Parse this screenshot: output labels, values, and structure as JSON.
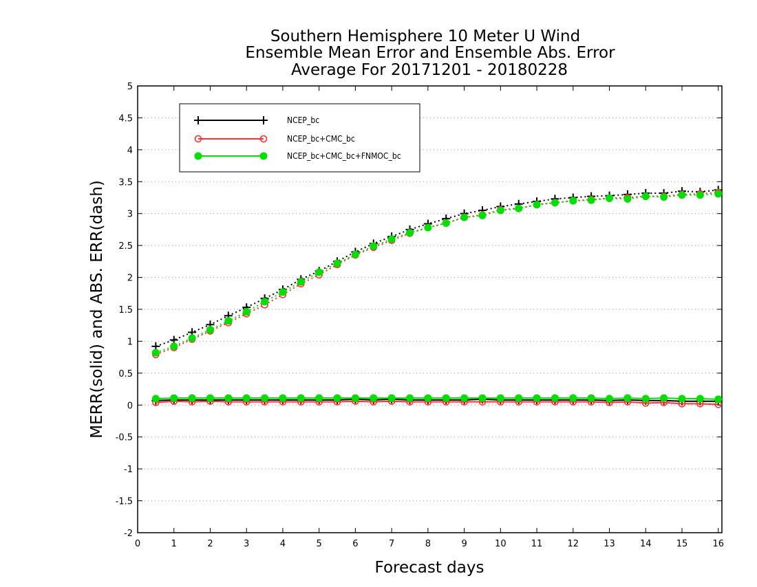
{
  "chart_data": {
    "type": "line",
    "title": [
      "Southern Hemisphere 10 Meter U Wind",
      "Ensemble Mean Error and Ensemble Abs. Error",
      "Average For 20171201 - 20180228"
    ],
    "xlabel": "Forecast days",
    "ylabel": "MERR(solid) and ABS. ERR(dash)",
    "xlim": [
      0,
      16.1
    ],
    "ylim": [
      -2,
      5
    ],
    "xticks": [
      "0",
      "1",
      "2",
      "3",
      "4",
      "5",
      "6",
      "7",
      "8",
      "9",
      "10",
      "11",
      "12",
      "13",
      "14",
      "15",
      "16"
    ],
    "yticks": [
      "-2",
      "-1.5",
      "-1",
      "-0.5",
      "0",
      "0.5",
      "1",
      "1.5",
      "2",
      "2.5",
      "3",
      "3.5",
      "4",
      "4.5",
      "5"
    ],
    "grid": "horizontal-dotted",
    "legend_position": "top-left",
    "x": [
      0.5,
      1,
      1.5,
      2,
      2.5,
      3,
      3.5,
      4,
      4.5,
      5,
      5.5,
      6,
      6.5,
      7,
      7.5,
      8,
      8.5,
      9,
      9.5,
      10,
      10.5,
      11,
      11.5,
      12,
      12.5,
      13,
      13.5,
      14,
      14.5,
      15,
      15.5,
      16
    ],
    "series": [
      {
        "name": "NCEP_bc",
        "color": "#000000",
        "marker": "plus",
        "merr": [
          0.07,
          0.08,
          0.08,
          0.08,
          0.08,
          0.08,
          0.08,
          0.08,
          0.08,
          0.08,
          0.08,
          0.09,
          0.08,
          0.09,
          0.08,
          0.08,
          0.08,
          0.08,
          0.09,
          0.08,
          0.08,
          0.08,
          0.08,
          0.08,
          0.08,
          0.07,
          0.08,
          0.07,
          0.07,
          0.06,
          0.06,
          0.06
        ],
        "abs_err": [
          0.92,
          1.02,
          1.14,
          1.26,
          1.4,
          1.53,
          1.67,
          1.81,
          1.97,
          2.1,
          2.25,
          2.4,
          2.53,
          2.64,
          2.75,
          2.84,
          2.92,
          3.0,
          3.05,
          3.11,
          3.15,
          3.19,
          3.23,
          3.25,
          3.27,
          3.28,
          3.3,
          3.32,
          3.32,
          3.35,
          3.34,
          3.37
        ]
      },
      {
        "name": "NCEP_bc+CMC_bc",
        "color": "#ff3333",
        "marker": "open-circle",
        "merr": [
          0.04,
          0.06,
          0.05,
          0.06,
          0.05,
          0.05,
          0.05,
          0.05,
          0.05,
          0.05,
          0.05,
          0.06,
          0.05,
          0.06,
          0.05,
          0.05,
          0.05,
          0.05,
          0.05,
          0.05,
          0.05,
          0.05,
          0.05,
          0.05,
          0.05,
          0.04,
          0.05,
          0.03,
          0.04,
          0.02,
          0.02,
          0.01
        ],
        "abs_err": [
          0.79,
          0.9,
          1.03,
          1.16,
          1.29,
          1.43,
          1.57,
          1.73,
          1.9,
          2.04,
          2.2,
          2.35,
          2.47,
          2.58,
          2.69,
          2.78,
          2.85,
          2.94,
          2.98,
          3.06,
          3.08,
          3.14,
          3.17,
          3.2,
          3.22,
          3.24,
          3.25,
          3.27,
          3.27,
          3.3,
          3.31,
          3.33
        ]
      },
      {
        "name": "NCEP_bc+CMC_bc+FNMOC_bc",
        "color": "#00dd00",
        "marker": "filled-circle",
        "merr": [
          0.1,
          0.11,
          0.11,
          0.11,
          0.11,
          0.11,
          0.11,
          0.11,
          0.11,
          0.11,
          0.11,
          0.11,
          0.11,
          0.11,
          0.11,
          0.11,
          0.11,
          0.11,
          0.11,
          0.11,
          0.11,
          0.11,
          0.11,
          0.11,
          0.11,
          0.1,
          0.11,
          0.1,
          0.11,
          0.1,
          0.1,
          0.09
        ],
        "abs_err": [
          0.82,
          0.92,
          1.05,
          1.18,
          1.32,
          1.46,
          1.62,
          1.77,
          1.93,
          2.08,
          2.22,
          2.36,
          2.49,
          2.6,
          2.7,
          2.78,
          2.85,
          2.94,
          2.97,
          3.05,
          3.08,
          3.14,
          3.17,
          3.2,
          3.21,
          3.24,
          3.23,
          3.27,
          3.26,
          3.29,
          3.29,
          3.31
        ]
      }
    ]
  }
}
